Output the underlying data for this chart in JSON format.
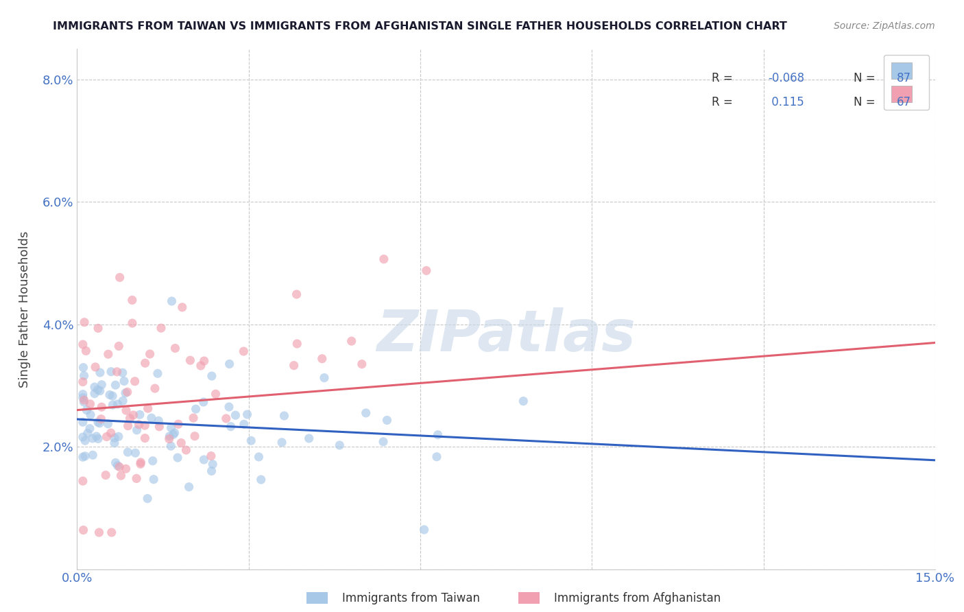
{
  "title": "IMMIGRANTS FROM TAIWAN VS IMMIGRANTS FROM AFGHANISTAN SINGLE FATHER HOUSEHOLDS CORRELATION CHART",
  "source": "Source: ZipAtlas.com",
  "ylabel": "Single Father Households",
  "xlim": [
    0.0,
    0.15
  ],
  "ylim": [
    0.0,
    0.085
  ],
  "xticks": [
    0.0,
    0.03,
    0.06,
    0.09,
    0.12,
    0.15
  ],
  "xticklabels": [
    "0.0%",
    "",
    "",
    "",
    "",
    "15.0%"
  ],
  "yticks": [
    0.0,
    0.02,
    0.04,
    0.06,
    0.08
  ],
  "yticklabels": [
    "",
    "2.0%",
    "4.0%",
    "6.0%",
    "8.0%"
  ],
  "taiwan_color": "#a8c8e8",
  "afghanistan_color": "#f0a0b0",
  "taiwan_line_color": "#3060c0",
  "afghanistan_line_color": "#e06070",
  "taiwan_line_x": [
    0.0,
    0.15
  ],
  "taiwan_line_y": [
    0.0245,
    0.0178
  ],
  "afghanistan_line_x": [
    0.0,
    0.15
  ],
  "afghanistan_line_y": [
    0.026,
    0.037
  ],
  "legend_blue_color": "#4472c4",
  "legend_pink_color": "#f48a9a",
  "legend_R1": "-0.068",
  "legend_N1": "87",
  "legend_R2": "0.115",
  "legend_N2": "67",
  "watermark_text": "ZIPatlas",
  "watermark_color": "#c8d8e8",
  "background_color": "#ffffff",
  "grid_color": "#c8c8c8",
  "title_color": "#1a1a2e",
  "source_color": "#888888",
  "tick_color": "#4472c4",
  "ylabel_color": "#444444",
  "taiwan_scatter_seed": 42,
  "afghanistan_scatter_seed": 7,
  "taiwan_N": 87,
  "afghanistan_N": 67
}
